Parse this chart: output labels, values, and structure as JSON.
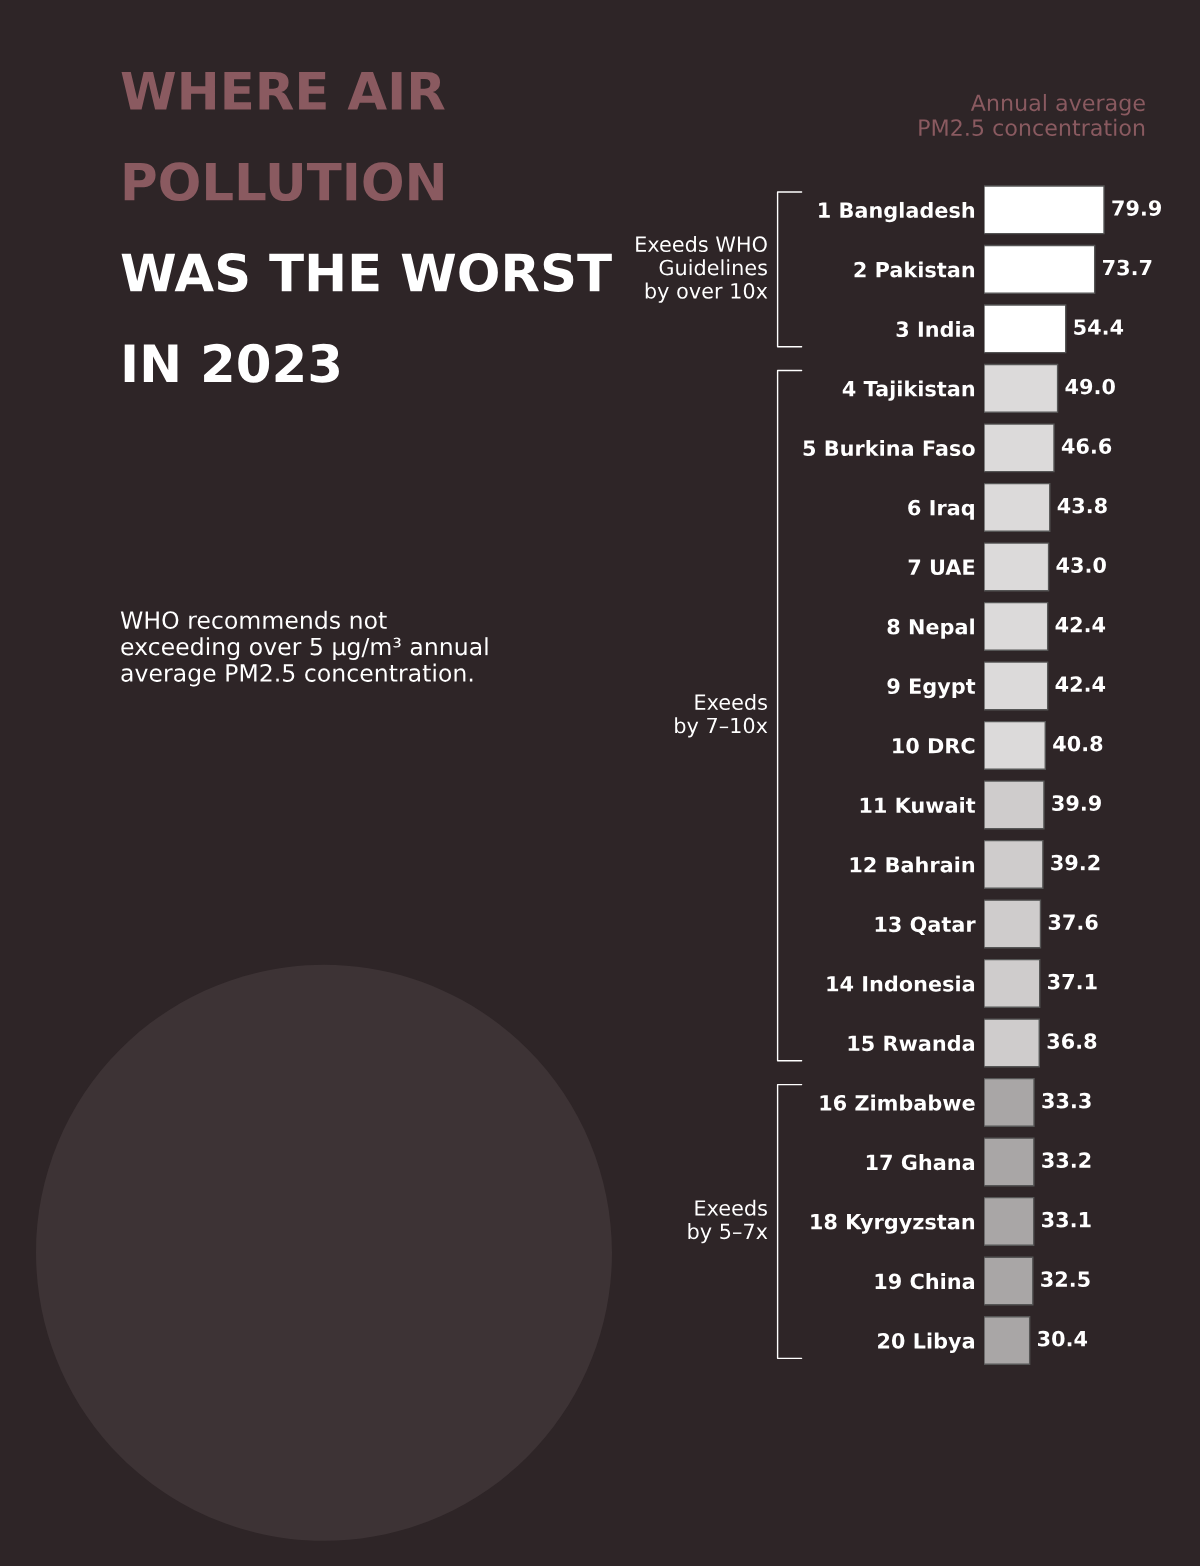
{
  "chart_data": {
    "type": "bar",
    "orientation": "horizontal",
    "title": "WHERE AIR\nPOLLUTION\nWAS THE WORST\nIN 2023",
    "annotations": [
      "Annual average\nPM2.5 concentration",
      "WHO recommends not\nexceeding over 5 µg/m³ annual\naverage PM2.5 concentration.",
      "Exeeds WHO\nGuidelines\nby over 10x",
      "Exeeds\nby 7–10x",
      "Exeeds\nby 5–7x"
    ],
    "categories": [
      "1 Bangladesh",
      "2 Pakistan",
      "3 India",
      "4 Tajikistan",
      "5 Burkina Faso",
      "6 Iraq",
      "7 UAE",
      "8 Nepal",
      "9 Egypt",
      "10 DRC",
      "11 Kuwait",
      "12 Bahrain",
      "13 Qatar",
      "14 Indonesia",
      "15 Rwanda",
      "16 Zimbabwe",
      "17 Ghana",
      "18 Kyrgyzstan",
      "19 China",
      "20 Libya"
    ],
    "values": [
      79.9,
      73.7,
      54.4,
      49.0,
      46.6,
      43.8,
      43.0,
      42.4,
      42.4,
      40.8,
      39.9,
      39.2,
      37.6,
      37.1,
      36.8,
      33.3,
      33.2,
      33.1,
      32.5,
      30.4
    ],
    "value_labels": [
      "79.9",
      "73.7",
      "54.4",
      "49.0",
      "46.6",
      "43.8",
      "43.0",
      "42.4",
      "42.4",
      "40.8",
      "39.9",
      "39.2",
      "37.6",
      "37.1",
      "36.8",
      "33.3",
      "33.2",
      "33.1",
      "32.5",
      "30.4"
    ],
    "colors": [
      "#ffffff",
      "#ffffff",
      "#ffffff",
      "#dcdada",
      "#dcdada",
      "#dcdada",
      "#dcdada",
      "#dcdada",
      "#dcdada",
      "#dcdada",
      "#cfcccc",
      "#cfcccc",
      "#cfcccc",
      "#cfcccc",
      "#cfcccc",
      "#a9a6a6",
      "#a9a6a6",
      "#a9a6a6",
      "#a9a6a6",
      "#a9a6a6"
    ]
  }
}
